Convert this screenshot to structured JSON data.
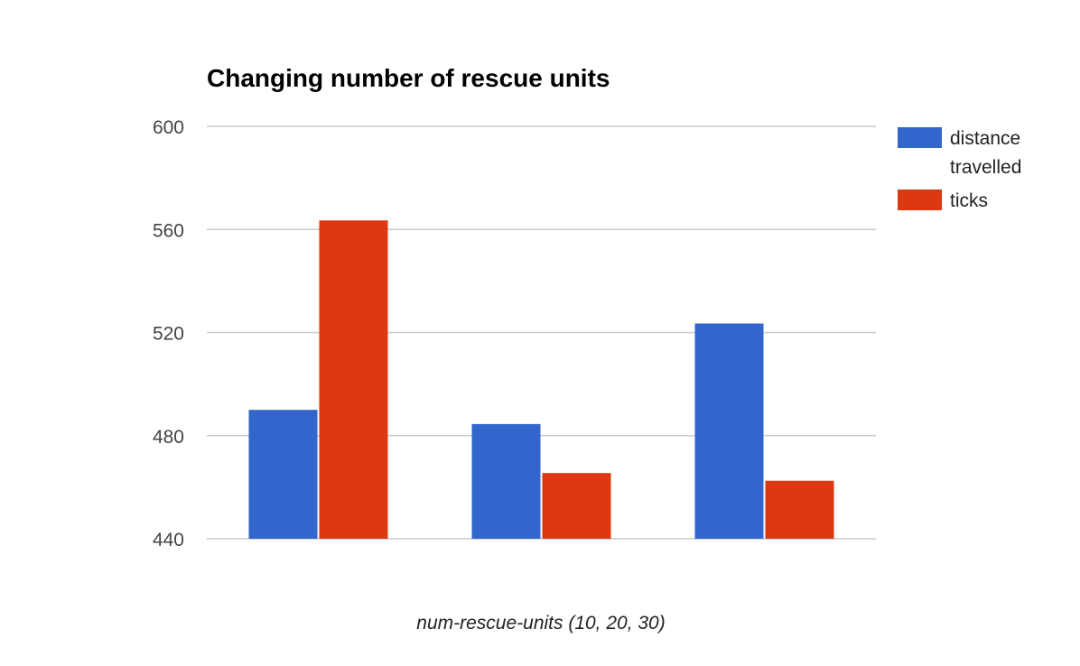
{
  "chart_data": {
    "type": "bar",
    "title": "Changing number of rescue units",
    "xlabel": "num-rescue-units (10, 20, 30)",
    "ylabel": "",
    "categories": [
      "",
      "",
      ""
    ],
    "series": [
      {
        "name": "distance travelled",
        "values": [
          490,
          484.5,
          523.5
        ],
        "color": "#3366cc"
      },
      {
        "name": "ticks",
        "values": [
          563.5,
          465.5,
          462.5
        ],
        "color": "#dc3912"
      }
    ],
    "ylim": [
      440,
      600
    ],
    "yticks": [
      "440",
      "480",
      "520",
      "560",
      "600"
    ],
    "grid": true,
    "legend_position": "right"
  }
}
